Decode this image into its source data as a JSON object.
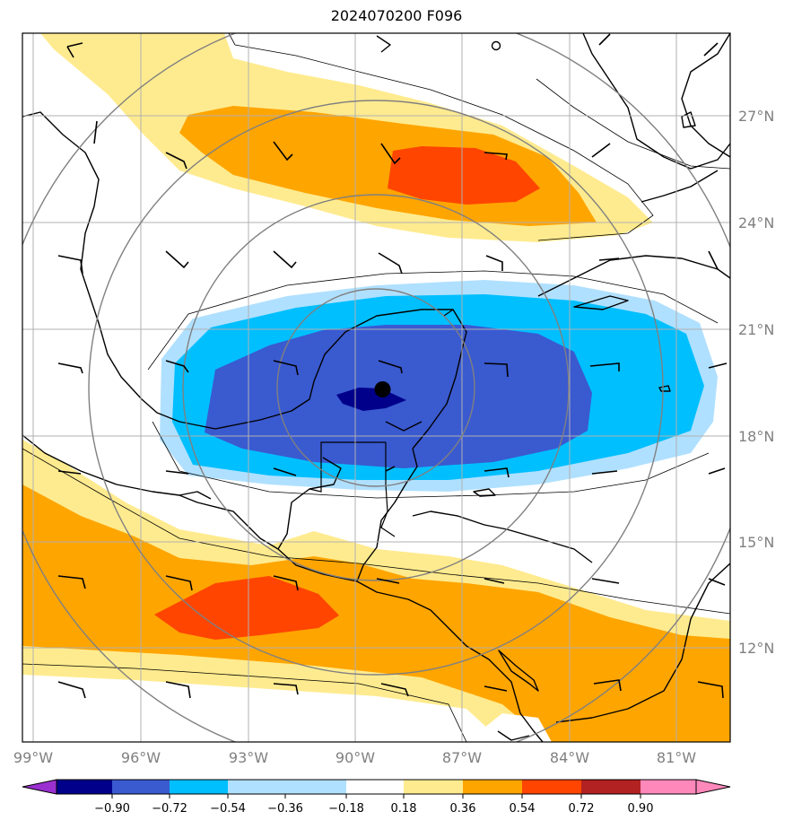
{
  "title": "2024070200 F096",
  "map": {
    "lat_labels": [
      "27°N",
      "24°N",
      "21°N",
      "18°N",
      "15°N",
      "12°N"
    ],
    "lat_values": [
      27,
      24,
      21,
      18,
      15,
      12
    ],
    "lon_labels": [
      "99°W",
      "96°W",
      "93°W",
      "90°W",
      "87°W",
      "84°W",
      "81°W"
    ],
    "lon_values": [
      -99,
      -96,
      -93,
      -90,
      -87,
      -84,
      -81
    ],
    "extent": {
      "lon_min": -99.35,
      "lon_max": -79.6,
      "lat_min": 9.5,
      "lat_max": 29.4
    },
    "storm_center": {
      "lon": -89.3,
      "lat": 19.4
    },
    "grid": true
  },
  "colorbar": {
    "tick_labels": [
      "−0.90",
      "−0.72",
      "−0.54",
      "−0.36",
      "−0.18",
      "0.18",
      "0.36",
      "0.54",
      "0.72",
      "0.90"
    ],
    "colors": [
      "#9b30d0",
      "#00008b",
      "#3a5ad0",
      "#00bfff",
      "#b0e0ff",
      "#ffffff",
      "#ffeb8f",
      "#ffa500",
      "#ff4500",
      "#b22222",
      "#ff88bb"
    ],
    "extend": "both"
  }
}
